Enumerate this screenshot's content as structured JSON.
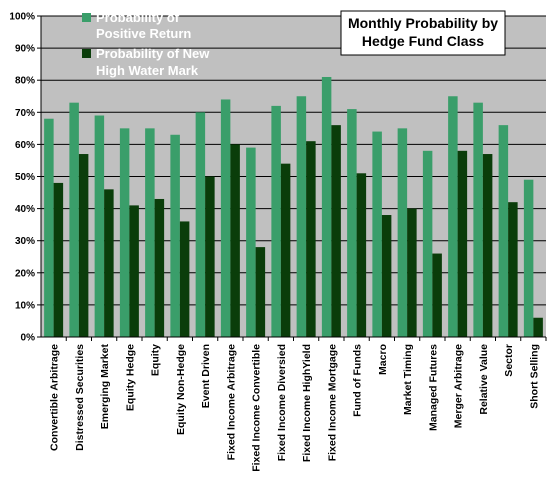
{
  "chart_data": {
    "type": "bar",
    "title": [
      "Monthly Probability by",
      "Hedge Fund Class"
    ],
    "ylim": [
      0,
      100
    ],
    "y_ticks": [
      "0%",
      "10%",
      "20%",
      "30%",
      "40%",
      "50%",
      "60%",
      "70%",
      "80%",
      "90%",
      "100%"
    ],
    "grid": true,
    "legend_position": "top-left",
    "categories": [
      "Convertible Arbitrage",
      "Distressed Securities",
      "Emerging Market",
      "Equity Hedge",
      "Equity",
      "Equity Non-Hedge",
      "Event Driven",
      "Fixed Income Arbitrage",
      "Fixed Income Convertible",
      "Fixed Income Diversied",
      "Fixed Income HighYield",
      "Fixed Income Mortgage",
      "Fund of Funds",
      "Macro",
      "Market Timing",
      "Managed Futures",
      "Merger Arbitrage",
      "Relative Value",
      "Sector",
      "Short Selling"
    ],
    "series": [
      {
        "name": [
          "Probability of",
          "Positive Return"
        ],
        "color": "#3a9e6a",
        "values": [
          68,
          73,
          69,
          65,
          65,
          63,
          70,
          74,
          59,
          72,
          75,
          81,
          71,
          64,
          65,
          58,
          75,
          73,
          66,
          49
        ]
      },
      {
        "name": [
          "Probability of New",
          "High Water Mark"
        ],
        "color": "#0a3d0a",
        "values": [
          48,
          57,
          46,
          41,
          43,
          36,
          50,
          60,
          28,
          54,
          61,
          66,
          51,
          38,
          40,
          26,
          58,
          57,
          42,
          6
        ]
      }
    ],
    "colors": {
      "plot_background": "#c0c0c0",
      "gridline": "#000000",
      "page_background": "#ffffff"
    }
  }
}
